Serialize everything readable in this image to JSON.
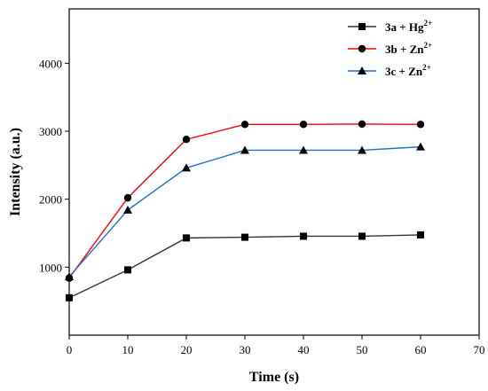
{
  "chart_data": {
    "type": "line",
    "xlabel": "Time (s)",
    "ylabel": "Intensity (a.u.)",
    "xlim": [
      0,
      70
    ],
    "ylim": [
      0,
      4800
    ],
    "xticks": [
      0,
      10,
      20,
      30,
      40,
      50,
      60,
      70
    ],
    "yticks": [
      1000,
      2000,
      3000,
      4000
    ],
    "x": [
      0,
      10,
      20,
      30,
      40,
      50,
      60
    ],
    "grid": false,
    "legend_position": "top-right",
    "series": [
      {
        "name": "3a + Hg",
        "superscript": "2+",
        "color": "#333333",
        "marker": "square",
        "values": [
          550,
          960,
          1430,
          1440,
          1455,
          1455,
          1475
        ]
      },
      {
        "name": "3b + Zn",
        "superscript": "2+",
        "color": "#ff0000",
        "marker": "circle",
        "values": [
          840,
          2020,
          2880,
          3100,
          3100,
          3105,
          3100
        ]
      },
      {
        "name": "3c + Zn",
        "superscript": "2+",
        "color": "#1f6fd1",
        "marker": "triangle",
        "values": [
          860,
          1840,
          2460,
          2720,
          2720,
          2720,
          2770
        ]
      }
    ]
  }
}
